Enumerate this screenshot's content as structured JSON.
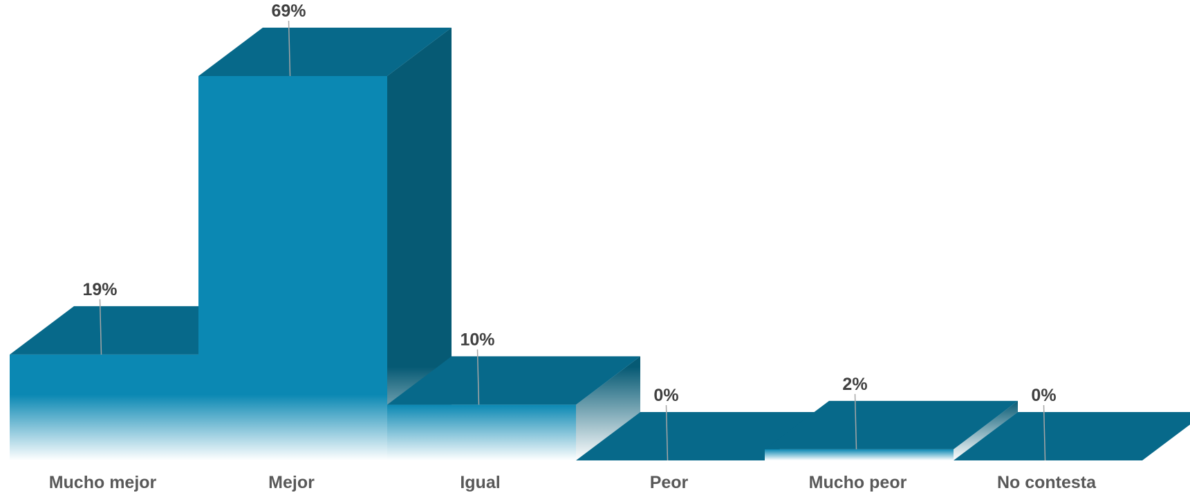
{
  "chart_data": {
    "type": "bar",
    "style": "3d-column",
    "categories": [
      "Mucho mejor",
      "Mejor",
      "Igual",
      "Peor",
      "Mucho peor",
      "No contesta"
    ],
    "values": [
      19,
      69,
      10,
      0,
      2,
      0
    ],
    "value_labels": [
      "19%",
      "69%",
      "10%",
      "0%",
      "2%",
      "0%"
    ],
    "unit": "%",
    "ylim": [
      0,
      69
    ],
    "grid": false,
    "legend": "none",
    "colors": {
      "front": "#0b88b3",
      "top": "#07698a",
      "side": "#065a74",
      "fade": "#ffffff"
    }
  }
}
